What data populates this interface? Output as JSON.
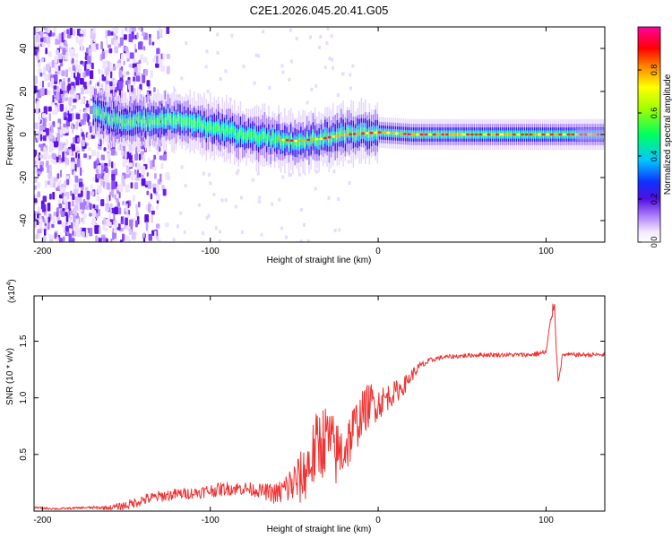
{
  "title": "C2E1.2026.045.20.41.G05",
  "chart_data": [
    {
      "type": "heatmap",
      "name": "spectrogram",
      "xlabel": "Height of straight line (km)",
      "ylabel": "Frequency (Hz)",
      "xlim": [
        -205,
        135
      ],
      "ylim": [
        -50,
        50
      ],
      "xticks": [
        -200,
        -100,
        0,
        100
      ],
      "yticks": [
        -40,
        -20,
        0,
        20,
        40
      ],
      "colorbar": {
        "label": "Normalized spectral amplitude",
        "range": [
          0,
          1
        ],
        "ticks": [
          "0.0",
          "0.2",
          "0.4",
          "0.6",
          "0.8"
        ]
      },
      "ridge": {
        "x": [
          -170,
          -155,
          -140,
          -125,
          -110,
          -95,
          -80,
          -65,
          -50,
          -35,
          -20,
          0,
          20,
          60,
          100,
          135
        ],
        "frequency_hz": [
          10,
          7,
          6,
          7,
          5,
          2,
          0,
          -2,
          -3,
          -2,
          0,
          1,
          0,
          0,
          0,
          0
        ]
      }
    },
    {
      "type": "line",
      "name": "snr",
      "xlabel": "Height of straight line (km)",
      "ylabel": "SNR (10 * v/v)",
      "y_multiplier": "(x10",
      "y_multiplier_exp": "4",
      "xlim": [
        -205,
        135
      ],
      "ylim": [
        0,
        1.9
      ],
      "xticks": [
        -200,
        -100,
        0,
        100
      ],
      "yticks": [
        "0.5",
        "1.0",
        "1.5"
      ],
      "ytick_values": [
        0.5,
        1.0,
        1.5
      ],
      "color": "#ee3333",
      "series": [
        {
          "name": "SNR",
          "x": [
            -205,
            -190,
            -175,
            -160,
            -150,
            -140,
            -130,
            -120,
            -110,
            -100,
            -90,
            -80,
            -70,
            -60,
            -50,
            -45,
            -40,
            -35,
            -30,
            -25,
            -20,
            -15,
            -10,
            -5,
            0,
            5,
            10,
            15,
            20,
            25,
            30,
            35,
            40,
            50,
            60,
            70,
            80,
            90,
            100,
            103,
            105,
            107,
            110,
            120,
            135
          ],
          "values": [
            0.03,
            0.02,
            0.03,
            0.03,
            0.05,
            0.1,
            0.13,
            0.15,
            0.16,
            0.18,
            0.2,
            0.2,
            0.18,
            0.15,
            0.25,
            0.3,
            0.45,
            0.6,
            0.65,
            0.5,
            0.55,
            0.7,
            0.85,
            0.95,
            0.95,
            1.0,
            1.05,
            1.1,
            1.2,
            1.28,
            1.32,
            1.35,
            1.36,
            1.37,
            1.38,
            1.38,
            1.38,
            1.38,
            1.4,
            1.7,
            1.85,
            1.15,
            1.38,
            1.38,
            1.38
          ],
          "noise": [
            0.01,
            0.01,
            0.01,
            0.02,
            0.04,
            0.05,
            0.05,
            0.05,
            0.05,
            0.06,
            0.06,
            0.06,
            0.06,
            0.1,
            0.2,
            0.25,
            0.3,
            0.35,
            0.3,
            0.3,
            0.25,
            0.25,
            0.2,
            0.2,
            0.15,
            0.12,
            0.1,
            0.08,
            0.06,
            0.04,
            0.03,
            0.02,
            0.02,
            0.02,
            0.02,
            0.02,
            0.02,
            0.02,
            0.03,
            0.05,
            0.05,
            0.05,
            0.02,
            0.02,
            0.02
          ]
        }
      ]
    }
  ]
}
